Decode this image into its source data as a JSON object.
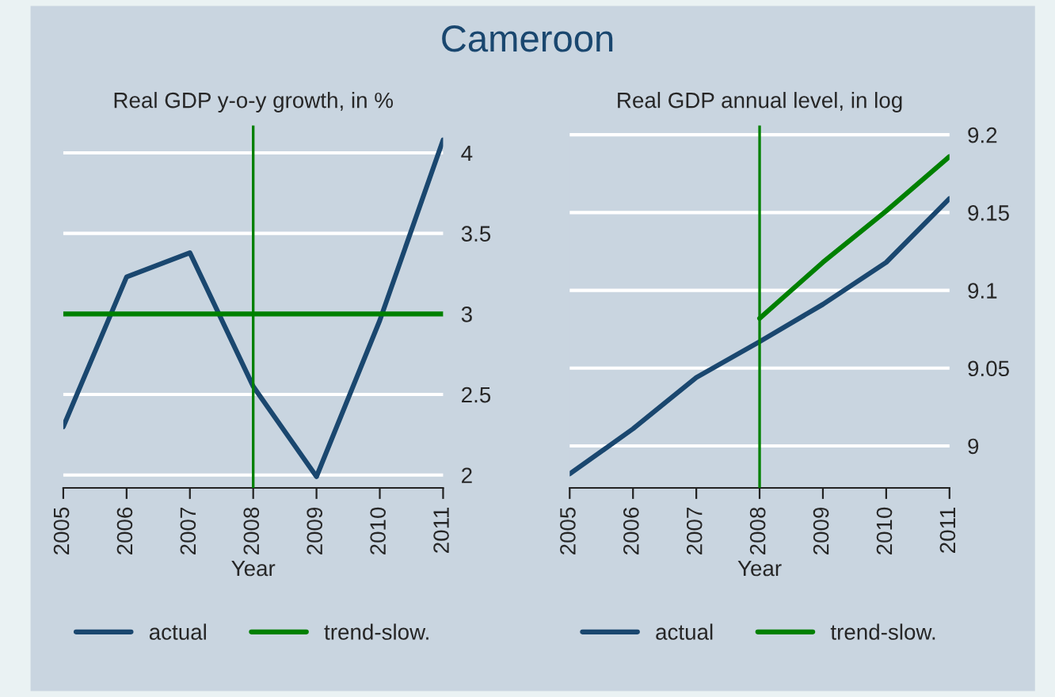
{
  "chart_data": [
    {
      "type": "line",
      "title": "Real GDP y-o-y growth, in %",
      "xlabel": "Year",
      "annotations": [
        "Cameroon"
      ],
      "x": [
        2005,
        2006,
        2007,
        2008,
        2009,
        2010,
        2011
      ],
      "series": [
        {
          "name": "actual",
          "color": "#1a476f",
          "values": [
            2.3,
            3.23,
            3.38,
            2.55,
            1.99,
            2.96,
            4.08
          ]
        },
        {
          "name": "trend-slow.",
          "color": "#008000",
          "values": [
            3.0,
            3.0,
            3.0,
            3.0,
            3.0,
            3.0,
            3.0
          ]
        }
      ],
      "xlim": [
        2005,
        2011
      ],
      "xticks": [
        2005,
        2006,
        2007,
        2008,
        2009,
        2010,
        2011
      ],
      "ylim": [
        1.92,
        4.17
      ],
      "yticks": [
        2,
        2.5,
        3,
        3.5,
        4
      ],
      "ref_lines": [
        {
          "axis": "x",
          "value": 2008,
          "color": "#008000"
        }
      ],
      "grid": "y",
      "legend": "bottom",
      "marker": "none",
      "line_style": "solid"
    },
    {
      "type": "line",
      "title": "Real GDP annual level, in log",
      "xlabel": "Year",
      "x": [
        2005,
        2006,
        2007,
        2008,
        2009,
        2010,
        2011
      ],
      "series": [
        {
          "name": "actual",
          "color": "#1a476f",
          "values": [
            8.982,
            9.011,
            9.044,
            9.067,
            9.091,
            9.118,
            9.159
          ]
        },
        {
          "name": "trend-slow.",
          "color": "#008000",
          "values": [
            null,
            null,
            null,
            9.082,
            9.118,
            9.151,
            9.186
          ]
        }
      ],
      "xlim": [
        2005,
        2011
      ],
      "xticks": [
        2005,
        2006,
        2007,
        2008,
        2009,
        2010,
        2011
      ],
      "ylim": [
        8.973,
        9.206
      ],
      "yticks": [
        9,
        9.05,
        9.1,
        9.15,
        9.2
      ],
      "ref_lines": [
        {
          "axis": "x",
          "value": 2008,
          "color": "#008000"
        }
      ],
      "grid": "y",
      "legend": "bottom",
      "marker": "none",
      "line_style": "solid"
    }
  ]
}
